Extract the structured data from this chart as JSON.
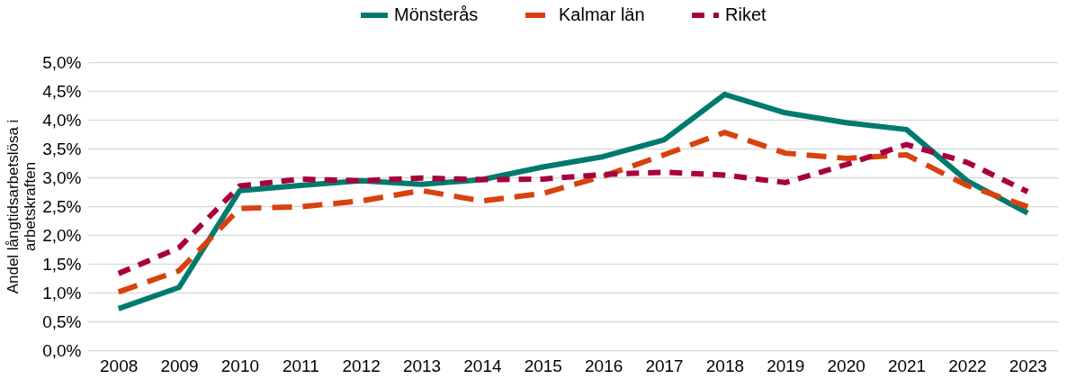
{
  "chart_data": {
    "type": "line",
    "ylabel": "Andel långtidsarbetslösa i arbetskraften",
    "categories": [
      "2008",
      "2009",
      "2010",
      "2011",
      "2012",
      "2013",
      "2014",
      "2015",
      "2016",
      "2017",
      "2018",
      "2019",
      "2020",
      "2021",
      "2022",
      "2023"
    ],
    "series": [
      {
        "name": "Mönsterås",
        "color": "#007a6e",
        "line_style": "solid",
        "values": [
          0.72,
          1.09,
          2.77,
          2.86,
          2.94,
          2.88,
          2.96,
          3.18,
          3.36,
          3.65,
          4.44,
          4.12,
          3.95,
          3.83,
          2.94,
          2.38
        ]
      },
      {
        "name": "Kalmar län",
        "color": "#d9410e",
        "line_style": "dashed",
        "values": [
          1.01,
          1.38,
          2.46,
          2.49,
          2.59,
          2.77,
          2.59,
          2.72,
          3.02,
          3.39,
          3.78,
          3.42,
          3.33,
          3.39,
          2.86,
          2.49
        ]
      },
      {
        "name": "Riket",
        "color": "#a8003c",
        "line_style": "dashed_short",
        "values": [
          1.33,
          1.78,
          2.85,
          2.97,
          2.94,
          2.99,
          2.96,
          2.97,
          3.05,
          3.09,
          3.04,
          2.91,
          3.22,
          3.57,
          3.26,
          2.75
        ]
      }
    ],
    "ylim": [
      0,
      5
    ],
    "yticks": [
      {
        "value": 0,
        "label": "0,0%"
      },
      {
        "value": 0.5,
        "label": "0,5%"
      },
      {
        "value": 1,
        "label": "1,0%"
      },
      {
        "value": 1.5,
        "label": "1,5%"
      },
      {
        "value": 2,
        "label": "2,0%"
      },
      {
        "value": 2.5,
        "label": "2,5%"
      },
      {
        "value": 3,
        "label": "3,0%"
      },
      {
        "value": 3.5,
        "label": "3,5%"
      },
      {
        "value": 4,
        "label": "4,0%"
      },
      {
        "value": 4.5,
        "label": "4,5%"
      },
      {
        "value": 5,
        "label": "5,0%"
      }
    ],
    "grid": "y",
    "legend": "top",
    "marker": "none"
  }
}
